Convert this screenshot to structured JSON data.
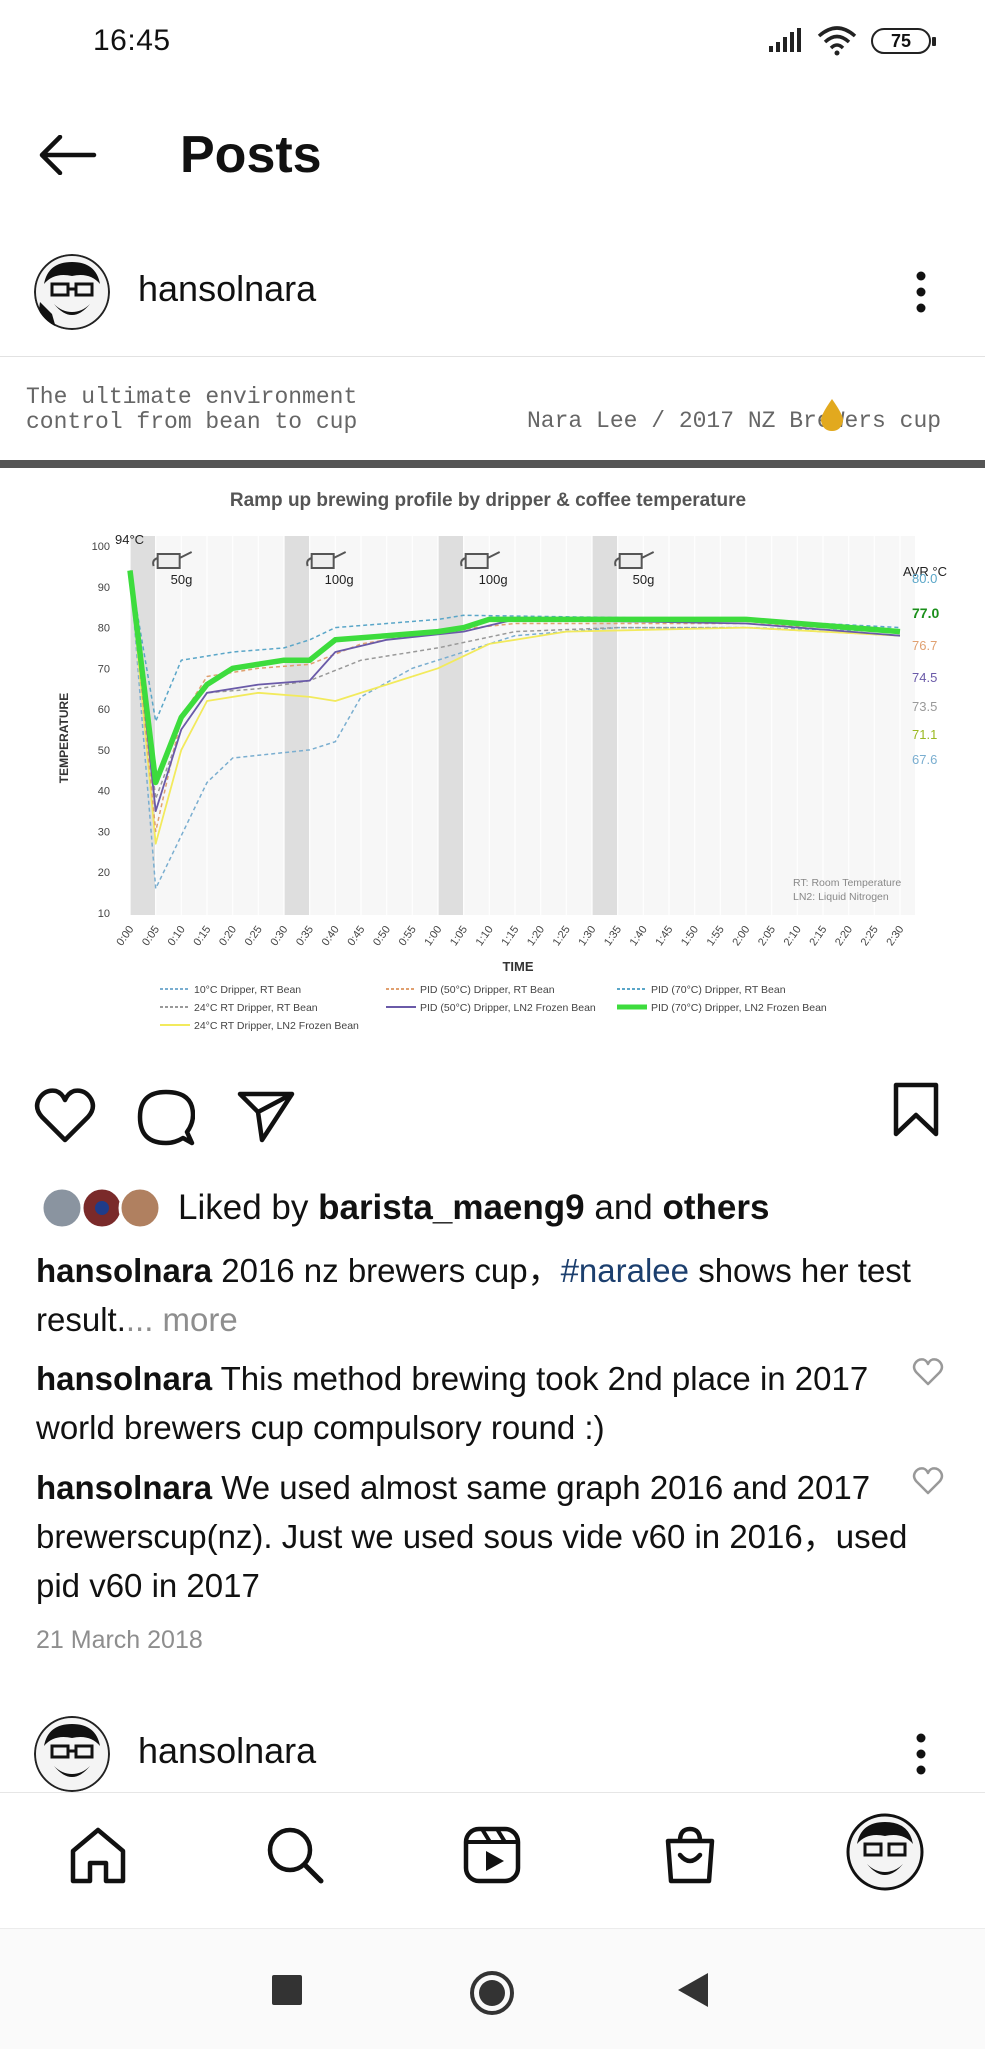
{
  "status_bar": {
    "time": "16:45",
    "battery": "75"
  },
  "header": {
    "title": "Posts"
  },
  "post": {
    "username": "hansolnara",
    "image": {
      "slogan": "The ultimate environment\ncontrol from bean to cup",
      "credit": "Nara Lee / 2017 NZ BreWers cup"
    },
    "liked_by_prefix": "Liked by ",
    "liked_by_user": "barista_maeng9",
    "liked_by_and": " and ",
    "liked_by_others": "others",
    "caption": {
      "username": "hansolnara",
      "text": " 2016 nz brewers cup，",
      "hashtag": "#naralee",
      "text2": " shows her test result.",
      "more": "... more"
    },
    "comments": [
      {
        "username": "hansolnara",
        "text": " This method brewing took 2nd place in 2017 world brewers cup compulsory round :)"
      },
      {
        "username": "hansolnara",
        "text": " We used almost same graph 2016 and 2017 brewerscup(nz). Just we used sous vide v60 in 2016，used pid v60 in 2017"
      }
    ],
    "date": "21 March 2018"
  },
  "next_post": {
    "username": "hansolnara"
  },
  "bottom_nav": {
    "items": [
      {
        "icon": "home-icon"
      },
      {
        "icon": "search-icon"
      },
      {
        "icon": "reels-icon"
      },
      {
        "icon": "shop-icon"
      },
      {
        "icon": "profile-avatar"
      }
    ]
  },
  "chart_data": {
    "type": "line",
    "title": "Ramp up brewing profile by dripper & coffee temperature",
    "xlabel": "TIME",
    "ylabel": "TEMPERATURE",
    "ylim": [
      10,
      100
    ],
    "yticks": [
      10,
      20,
      30,
      40,
      50,
      60,
      70,
      80,
      90,
      100
    ],
    "x_ticks": [
      "0:00",
      "0:05",
      "0:10",
      "0:15",
      "0:20",
      "0:25",
      "0:30",
      "0:35",
      "0:40",
      "0:45",
      "0:50",
      "0:55",
      "1:00",
      "1:05",
      "1:10",
      "1:15",
      "1:20",
      "1:25",
      "1:30",
      "1:35",
      "1:40",
      "1:45",
      "1:50",
      "1:55",
      "2:00",
      "2:05",
      "2:10",
      "2:15",
      "2:20",
      "2:25",
      "2:30"
    ],
    "pours": [
      {
        "label": "50g",
        "start": 0,
        "end": 5
      },
      {
        "label": "100g",
        "start": 30,
        "end": 35
      },
      {
        "label": "100g",
        "start": 60,
        "end": 65
      },
      {
        "label": "50g",
        "start": 90,
        "end": 95
      }
    ],
    "start_label": "94°C",
    "avr_label": "AVR °C",
    "notes": [
      "RT: Room Temperature",
      "LN2: Liquid Nitrogen"
    ],
    "legend_position": "bottom",
    "grid": true,
    "series": [
      {
        "name": "10°C Dripper, RT Bean",
        "color": "#7aaed0",
        "dashed": true,
        "width": 1.5,
        "avg": "67.6",
        "points": [
          [
            0,
            94
          ],
          [
            5,
            16
          ],
          [
            15,
            42
          ],
          [
            20,
            48
          ],
          [
            35,
            50
          ],
          [
            40,
            52
          ],
          [
            45,
            63
          ],
          [
            55,
            70
          ],
          [
            65,
            74
          ],
          [
            75,
            78
          ],
          [
            95,
            80
          ],
          [
            120,
            80
          ],
          [
            150,
            79
          ]
        ]
      },
      {
        "name": "24°C RT Dripper, RT Bean",
        "color": "#999999",
        "dashed": true,
        "width": 1.5,
        "avg": "73.5",
        "points": [
          [
            0,
            94
          ],
          [
            5,
            38
          ],
          [
            10,
            55
          ],
          [
            15,
            64
          ],
          [
            25,
            65
          ],
          [
            35,
            67
          ],
          [
            45,
            72
          ],
          [
            60,
            75
          ],
          [
            75,
            79
          ],
          [
            95,
            80
          ],
          [
            120,
            80
          ],
          [
            150,
            78
          ]
        ]
      },
      {
        "name": "24°C RT Dripper, LN2 Frozen Bean",
        "color": "#f2ea5c",
        "dashed": false,
        "width": 1.8,
        "avg": "71.1",
        "points": [
          [
            0,
            94
          ],
          [
            5,
            27
          ],
          [
            10,
            50
          ],
          [
            15,
            62
          ],
          [
            25,
            64
          ],
          [
            35,
            63
          ],
          [
            40,
            62
          ],
          [
            50,
            66
          ],
          [
            60,
            70
          ],
          [
            70,
            76
          ],
          [
            85,
            79
          ],
          [
            120,
            80
          ],
          [
            150,
            78
          ]
        ]
      },
      {
        "name": "PID (50°C) Dripper, RT Bean",
        "color": "#e0a070",
        "dashed": true,
        "width": 1.5,
        "avg": "76.7",
        "points": [
          [
            0,
            94
          ],
          [
            5,
            30
          ],
          [
            10,
            58
          ],
          [
            15,
            68
          ],
          [
            25,
            70
          ],
          [
            35,
            71
          ],
          [
            45,
            76
          ],
          [
            60,
            79
          ],
          [
            75,
            81
          ],
          [
            120,
            81
          ],
          [
            150,
            79
          ]
        ]
      },
      {
        "name": "PID (50°C) Dripper, LN2 Frozen Bean",
        "color": "#6a5aa8",
        "dashed": false,
        "width": 1.8,
        "avg": "74.5",
        "points": [
          [
            0,
            94
          ],
          [
            5,
            35
          ],
          [
            10,
            55
          ],
          [
            15,
            64
          ],
          [
            25,
            66
          ],
          [
            35,
            67
          ],
          [
            40,
            74
          ],
          [
            50,
            77
          ],
          [
            65,
            79
          ],
          [
            75,
            82
          ],
          [
            120,
            81
          ],
          [
            150,
            78
          ]
        ]
      },
      {
        "name": "PID (70°C) Dripper, RT Bean",
        "color": "#5aa6c8",
        "dashed": true,
        "width": 1.5,
        "avg": "80.0",
        "points": [
          [
            0,
            94
          ],
          [
            5,
            57
          ],
          [
            10,
            72
          ],
          [
            20,
            74
          ],
          [
            30,
            75
          ],
          [
            35,
            77
          ],
          [
            40,
            80
          ],
          [
            50,
            81
          ],
          [
            60,
            82
          ],
          [
            65,
            83
          ],
          [
            120,
            82
          ],
          [
            150,
            80
          ]
        ]
      },
      {
        "name": "PID (70°C) Dripper, LN2 Frozen Bean",
        "color": "#3ddc3d",
        "dashed": false,
        "width": 5.5,
        "avg": "77.0",
        "points": [
          [
            0,
            94
          ],
          [
            5,
            42
          ],
          [
            10,
            58
          ],
          [
            15,
            66
          ],
          [
            20,
            70
          ],
          [
            30,
            72
          ],
          [
            35,
            72
          ],
          [
            40,
            77
          ],
          [
            50,
            78
          ],
          [
            60,
            79
          ],
          [
            65,
            80
          ],
          [
            70,
            82
          ],
          [
            120,
            82
          ],
          [
            150,
            79
          ]
        ]
      }
    ]
  }
}
